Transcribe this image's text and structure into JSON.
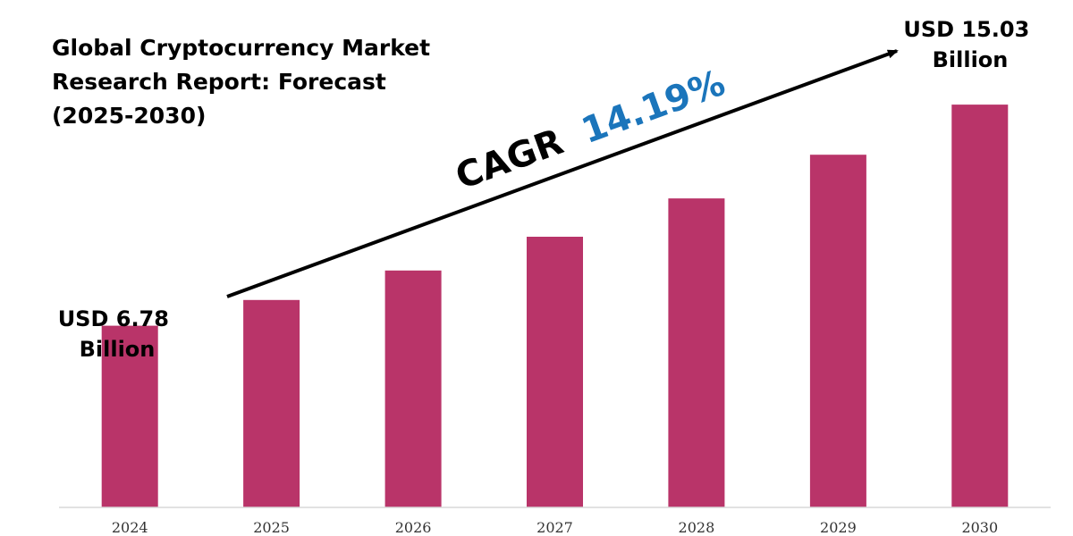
{
  "chart_data": {
    "type": "bar",
    "title_lines": [
      "Global Cryptocurrency Market",
      "Research Report: Forecast",
      "(2025-2030)"
    ],
    "categories": [
      "2024",
      "2025",
      "2026",
      "2027",
      "2028",
      "2029",
      "2030"
    ],
    "values": [
      6.78,
      7.74,
      8.84,
      10.1,
      11.53,
      13.16,
      15.03
    ],
    "unit": "USD Billion",
    "ylim": [
      0,
      18
    ],
    "grid": false,
    "bar_color": "#b93469",
    "annotations": {
      "start_label": [
        "USD 6.78",
        "Billion"
      ],
      "end_label": [
        "USD 15.03",
        "Billion"
      ],
      "cagr_prefix": "CAGR",
      "cagr_value": "14.19%",
      "cagr_prefix_color": "#000000",
      "cagr_value_color": "#1b75bb"
    }
  }
}
